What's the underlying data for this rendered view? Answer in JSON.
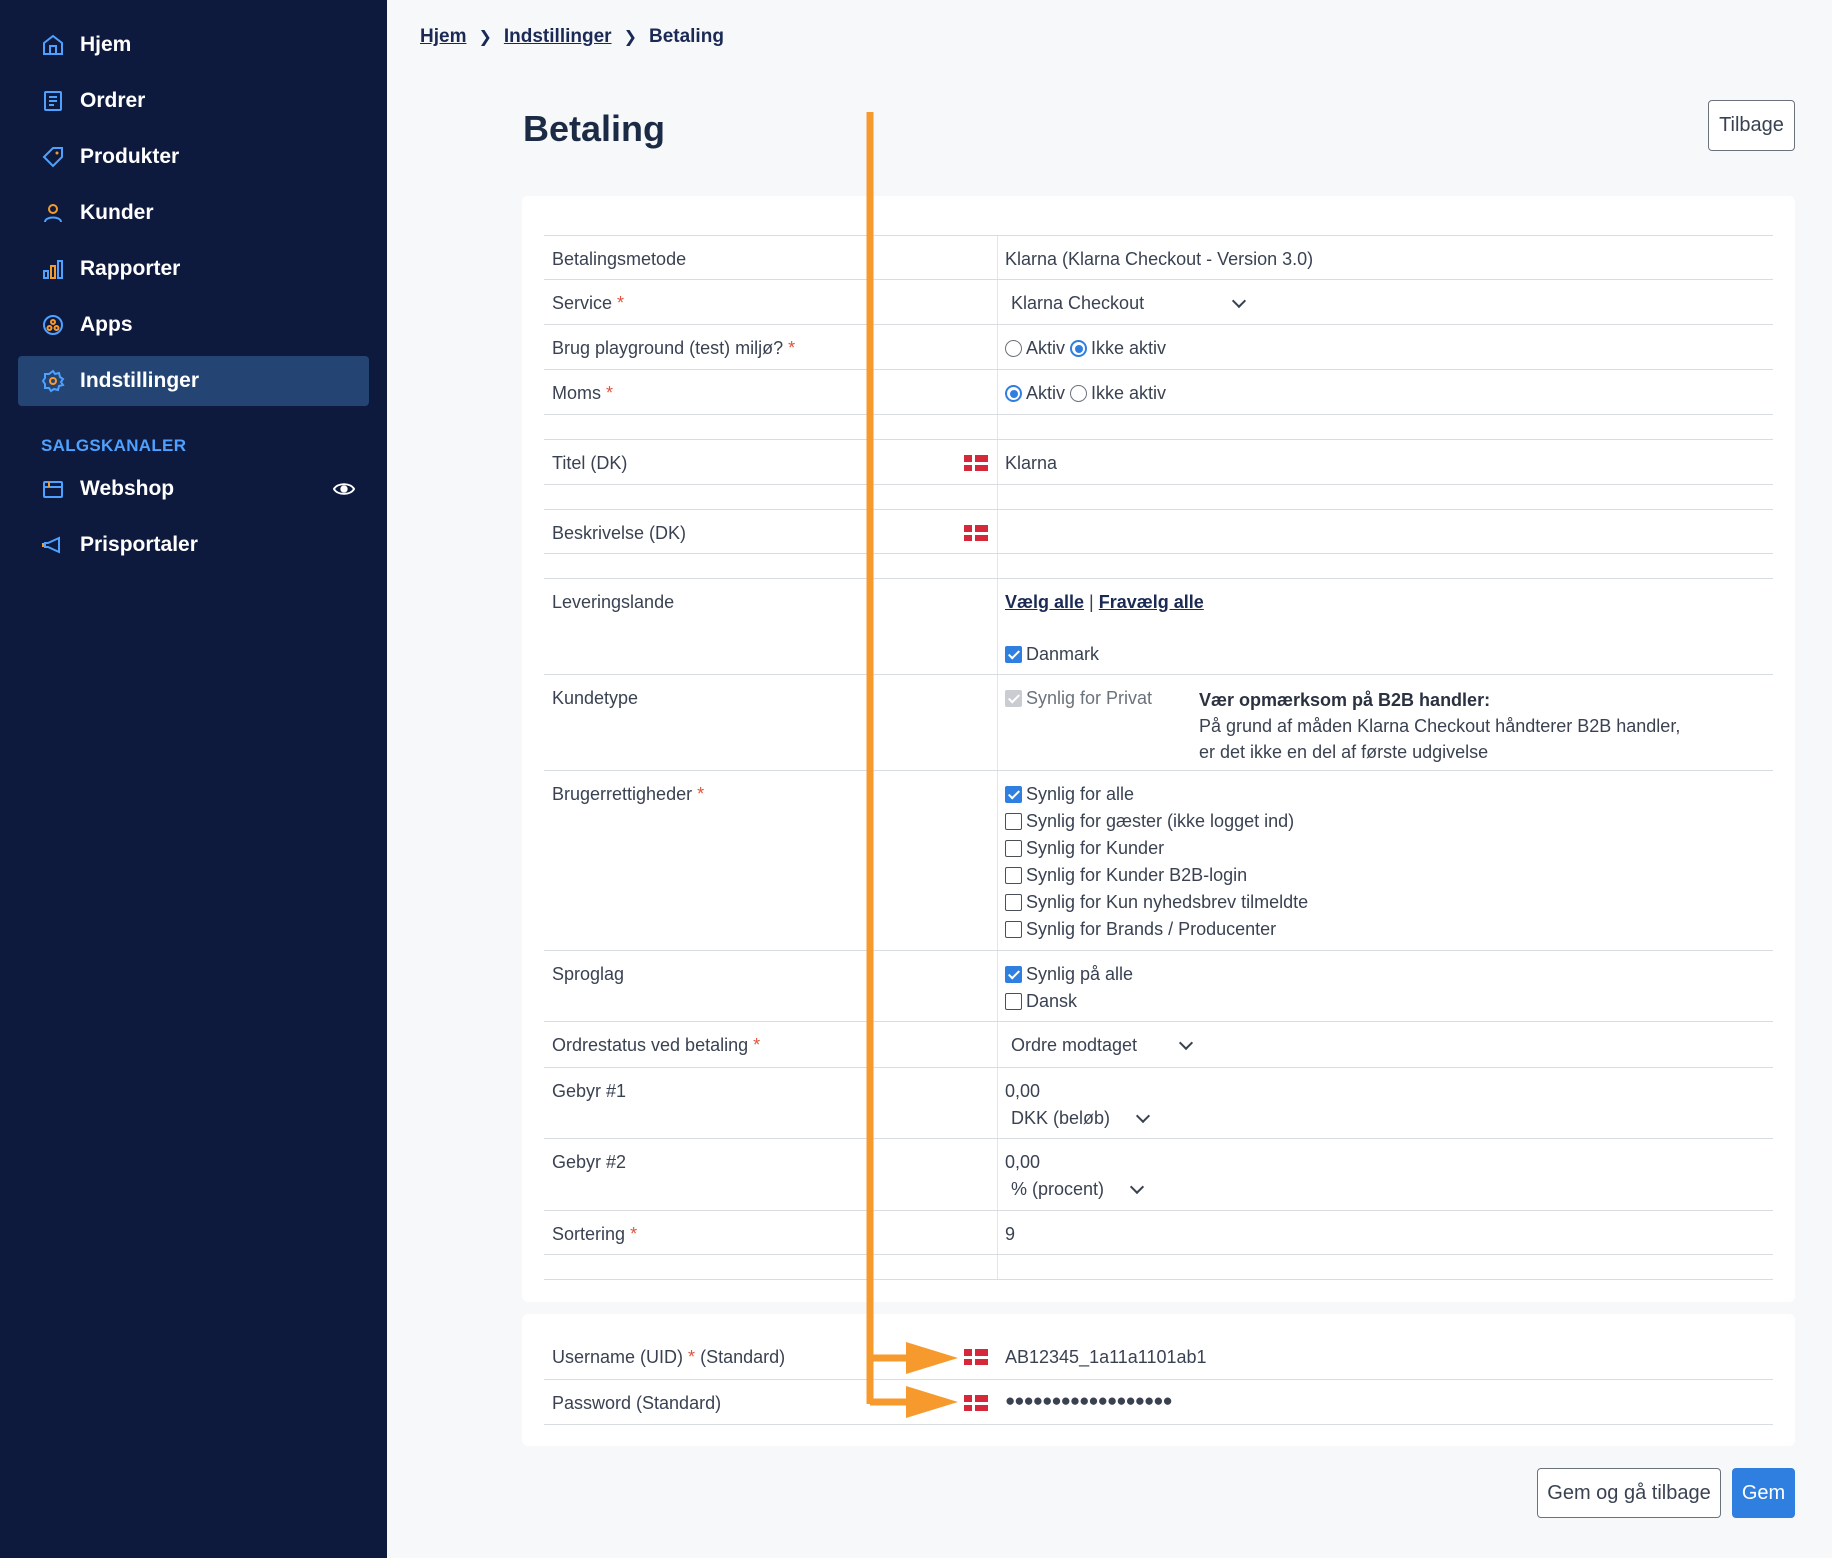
{
  "sidebar": {
    "items": [
      {
        "label": "Hjem",
        "icon": "home-icon"
      },
      {
        "label": "Ordrer",
        "icon": "orders-icon"
      },
      {
        "label": "Produkter",
        "icon": "tag-icon"
      },
      {
        "label": "Kunder",
        "icon": "user-icon"
      },
      {
        "label": "Rapporter",
        "icon": "bar-chart-icon"
      },
      {
        "label": "Apps",
        "icon": "apps-icon"
      },
      {
        "label": "Indstillinger",
        "icon": "gear-icon",
        "active": true
      }
    ],
    "section_title": "SALGSKANALER",
    "channels": [
      {
        "label": "Webshop",
        "icon": "store-icon"
      },
      {
        "label": "Prisportaler",
        "icon": "megaphone-icon"
      }
    ]
  },
  "breadcrumb": {
    "home": "Hjem",
    "settings": "Indstillinger",
    "current": "Betaling"
  },
  "page_title": "Betaling",
  "buttons": {
    "back": "Tilbage",
    "save_back": "Gem og gå tilbage",
    "save": "Gem"
  },
  "form": {
    "method": {
      "label": "Betalingsmetode",
      "value": "Klarna (Klarna Checkout - Version 3.0)"
    },
    "service": {
      "label": "Service",
      "required": "*",
      "value": "Klarna Checkout"
    },
    "playground": {
      "label": "Brug playground (test) miljø?",
      "required": "*",
      "opt_on": "Aktiv",
      "opt_off": "Ikke aktiv",
      "selected": "Ikke aktiv"
    },
    "moms": {
      "label": "Moms",
      "required": "*",
      "opt_on": "Aktiv",
      "opt_off": "Ikke aktiv",
      "selected": "Aktiv"
    },
    "title": {
      "label": "Titel (DK)",
      "value": "Klarna"
    },
    "description": {
      "label": "Beskrivelse (DK)",
      "value": ""
    },
    "countries": {
      "label": "Leveringslande",
      "select_all": "Vælg alle",
      "divider": "|",
      "deselect_all": "Fravælg alle",
      "options": [
        {
          "label": "Danmark",
          "checked": true
        }
      ]
    },
    "customer_type": {
      "label": "Kundetype",
      "option": "Synlig for Privat",
      "note_title": "Vær opmærksom på B2B handler:",
      "note_line1": "På grund af måden Klarna Checkout håndterer B2B handler,",
      "note_line2": "er det ikke en del af første udgivelse"
    },
    "permissions": {
      "label": "Brugerrettigheder",
      "required": "*",
      "options": [
        {
          "label": "Synlig for alle",
          "checked": true
        },
        {
          "label": "Synlig for gæster (ikke logget ind)",
          "checked": false
        },
        {
          "label": "Synlig for Kunder",
          "checked": false
        },
        {
          "label": "Synlig for Kunder B2B-login",
          "checked": false
        },
        {
          "label": "Synlig for Kun nyhedsbrev tilmeldte",
          "checked": false
        },
        {
          "label": "Synlig for Brands / Producenter",
          "checked": false
        }
      ]
    },
    "languages": {
      "label": "Sproglag",
      "options": [
        {
          "label": "Synlig på alle",
          "checked": true
        },
        {
          "label": "Dansk",
          "checked": false
        }
      ]
    },
    "order_status": {
      "label": "Ordrestatus ved betaling",
      "required": "*",
      "value": "Ordre modtaget"
    },
    "fee1": {
      "label": "Gebyr #1",
      "value": "0,00",
      "unit": "DKK (beløb)"
    },
    "fee2": {
      "label": "Gebyr #2",
      "value": "0,00",
      "unit": "% (procent)"
    },
    "sort": {
      "label": "Sortering",
      "required": "*",
      "value": "9"
    }
  },
  "credentials": {
    "username": {
      "label_pre": "Username (UID)",
      "required": "*",
      "label_post": "(Standard)",
      "value": "AB12345_1a11a1101ab1"
    },
    "password": {
      "label": "Password (Standard)",
      "value": "●●●●●●●●●●●●●●●●●●"
    }
  },
  "colors": {
    "sidebar_bg": "#0e1a3d",
    "active_bg": "#244574",
    "accent": "#2f7fe0",
    "annotation": "#f79a2e",
    "required": "#e0533d"
  }
}
